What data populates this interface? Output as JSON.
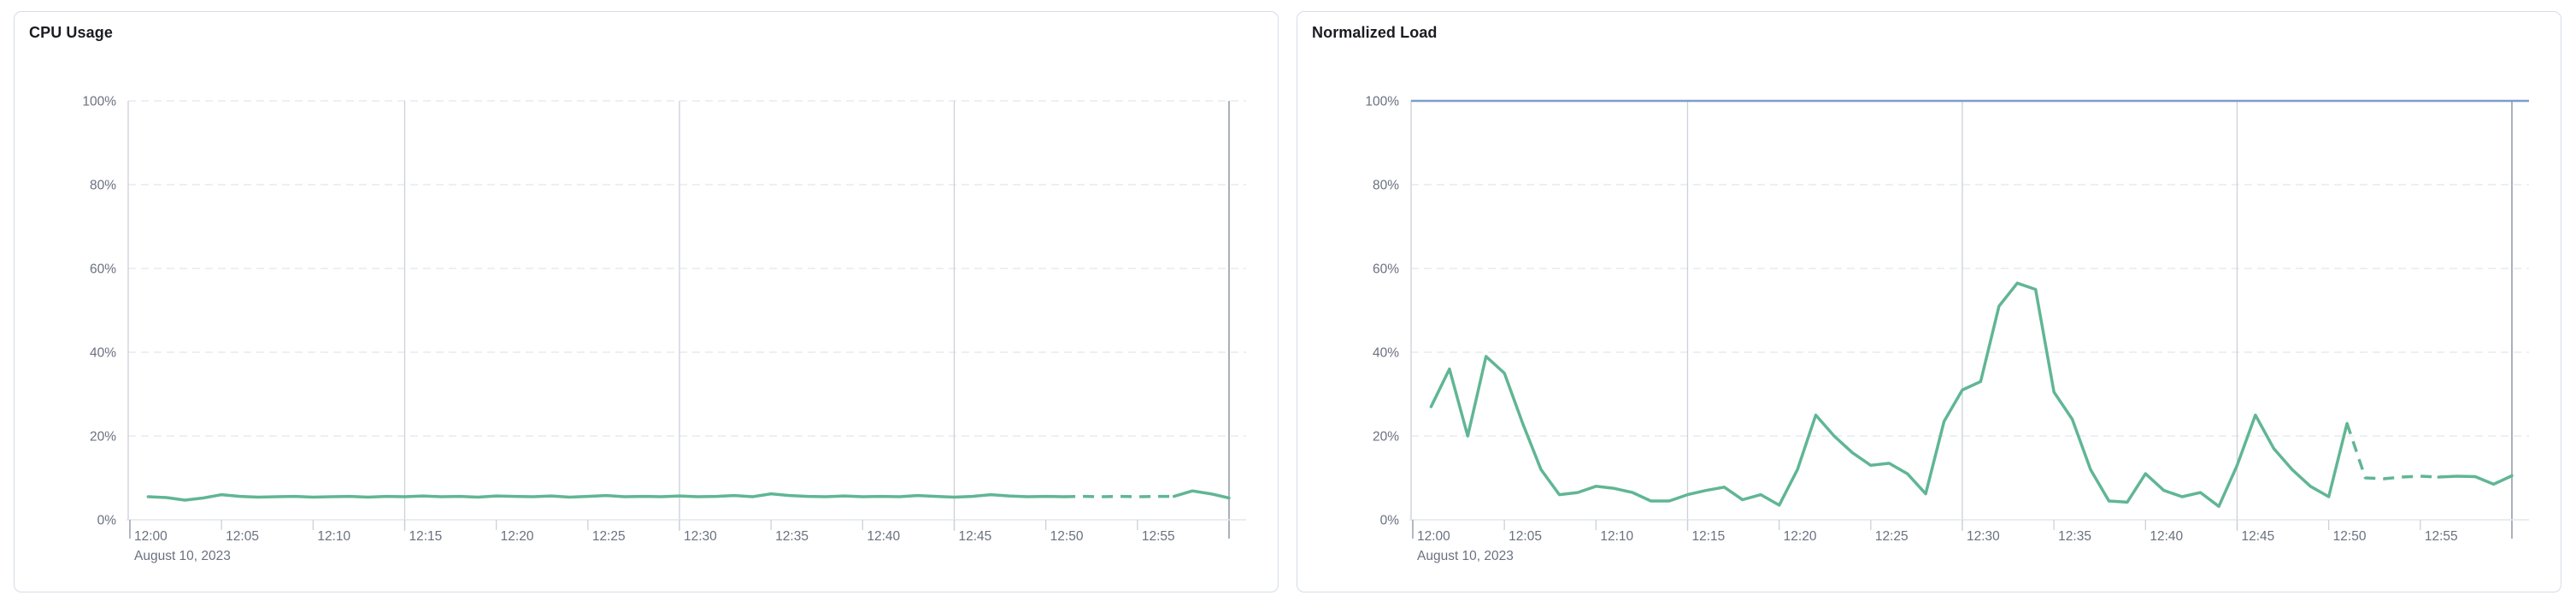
{
  "page": {
    "background": "#ffffff"
  },
  "colors": {
    "series_green": "#60b694",
    "threshold_blue": "#7c9dc9",
    "grid_dashed": "#e2e5ee",
    "grid_vertical": "#ccd0d9",
    "grid_end": "#a9b0bb",
    "axis_line": "#e2e5ec",
    "tick_minor": "#ccd1d9",
    "tick_major": "#99a1af",
    "axis_label": "#6a7180",
    "title_text": "#1a1c21",
    "card_border": "#d6dce8",
    "card_bg": "#ffffff"
  },
  "chart_data": [
    {
      "type": "line",
      "title": "CPU Usage",
      "xlabel": "",
      "ylabel": "",
      "unit": "%",
      "ylim": [
        0,
        100
      ],
      "x_range": [
        "12:00",
        "13:00"
      ],
      "x_step_minutes": 1,
      "first_point_minute": 1,
      "date_label": "August 10, 2023",
      "y_tick_labels": [
        "0%",
        "20%",
        "40%",
        "60%",
        "80%",
        "100%"
      ],
      "x_tick_labels": [
        "12:00",
        "12:05",
        "12:10",
        "12:15",
        "12:20",
        "12:25",
        "12:30",
        "12:35",
        "12:40",
        "12:45",
        "12:50",
        "12:55"
      ],
      "x_tick_minutes": [
        0,
        5,
        10,
        15,
        20,
        25,
        30,
        35,
        40,
        45,
        50,
        55
      ],
      "vertical_grid_minutes": [
        15,
        30,
        45
      ],
      "end_grid_minute": 60,
      "grid": "dashed-horizontal",
      "legend": "none",
      "top_gridline_dashed": true,
      "threshold": null,
      "series": [
        {
          "name": "cpu-usage",
          "color": "#60b694",
          "dashed_from_index": 50,
          "dashed_to_index": 56,
          "values": [
            5.5,
            5.3,
            4.7,
            5.2,
            6.0,
            5.6,
            5.4,
            5.5,
            5.6,
            5.4,
            5.5,
            5.6,
            5.4,
            5.6,
            5.5,
            5.7,
            5.5,
            5.6,
            5.4,
            5.7,
            5.6,
            5.5,
            5.7,
            5.4,
            5.6,
            5.8,
            5.5,
            5.6,
            5.5,
            5.7,
            5.5,
            5.6,
            5.8,
            5.5,
            6.2,
            5.8,
            5.6,
            5.5,
            5.7,
            5.5,
            5.6,
            5.5,
            5.8,
            5.6,
            5.4,
            5.6,
            6.0,
            5.7,
            5.5,
            5.6,
            5.5,
            5.6,
            5.5,
            5.6,
            5.5,
            5.6,
            5.6,
            6.9,
            6.2,
            5.2
          ]
        }
      ]
    },
    {
      "type": "line",
      "title": "Normalized Load",
      "xlabel": "",
      "ylabel": "",
      "unit": "%",
      "ylim": [
        0,
        100
      ],
      "x_range": [
        "12:00",
        "13:00"
      ],
      "x_step_minutes": 1,
      "first_point_minute": 1,
      "date_label": "August 10, 2023",
      "y_tick_labels": [
        "0%",
        "20%",
        "40%",
        "60%",
        "80%",
        "100%"
      ],
      "x_tick_labels": [
        "12:00",
        "12:05",
        "12:10",
        "12:15",
        "12:20",
        "12:25",
        "12:30",
        "12:35",
        "12:40",
        "12:45",
        "12:50",
        "12:55"
      ],
      "x_tick_minutes": [
        0,
        5,
        10,
        15,
        20,
        25,
        30,
        35,
        40,
        45,
        50,
        55
      ],
      "vertical_grid_minutes": [
        15,
        30,
        45
      ],
      "end_grid_minute": 60,
      "grid": "dashed-horizontal",
      "legend": "none",
      "top_gridline_dashed": false,
      "threshold": {
        "value": 100,
        "color": "#7c9dc9"
      },
      "series": [
        {
          "name": "normalized-load",
          "color": "#60b694",
          "dashed_from_index": 50,
          "dashed_to_index": 55,
          "values": [
            27,
            36,
            20,
            39,
            35,
            23,
            12,
            6,
            6.5,
            8,
            7.5,
            6.5,
            4.5,
            4.5,
            6,
            7,
            7.8,
            4.8,
            6,
            3.5,
            12,
            25,
            20,
            16,
            13,
            13.5,
            11,
            6.2,
            23.5,
            31,
            33,
            51,
            56.5,
            55,
            30.5,
            24,
            12,
            4.5,
            4.2,
            11,
            7,
            5.5,
            6.5,
            3.2,
            13,
            25,
            17,
            12,
            8,
            5.5,
            23,
            10,
            9.8,
            10.2,
            10.4,
            10.2,
            10.4,
            10.3,
            8.5,
            10.5
          ]
        }
      ]
    }
  ]
}
